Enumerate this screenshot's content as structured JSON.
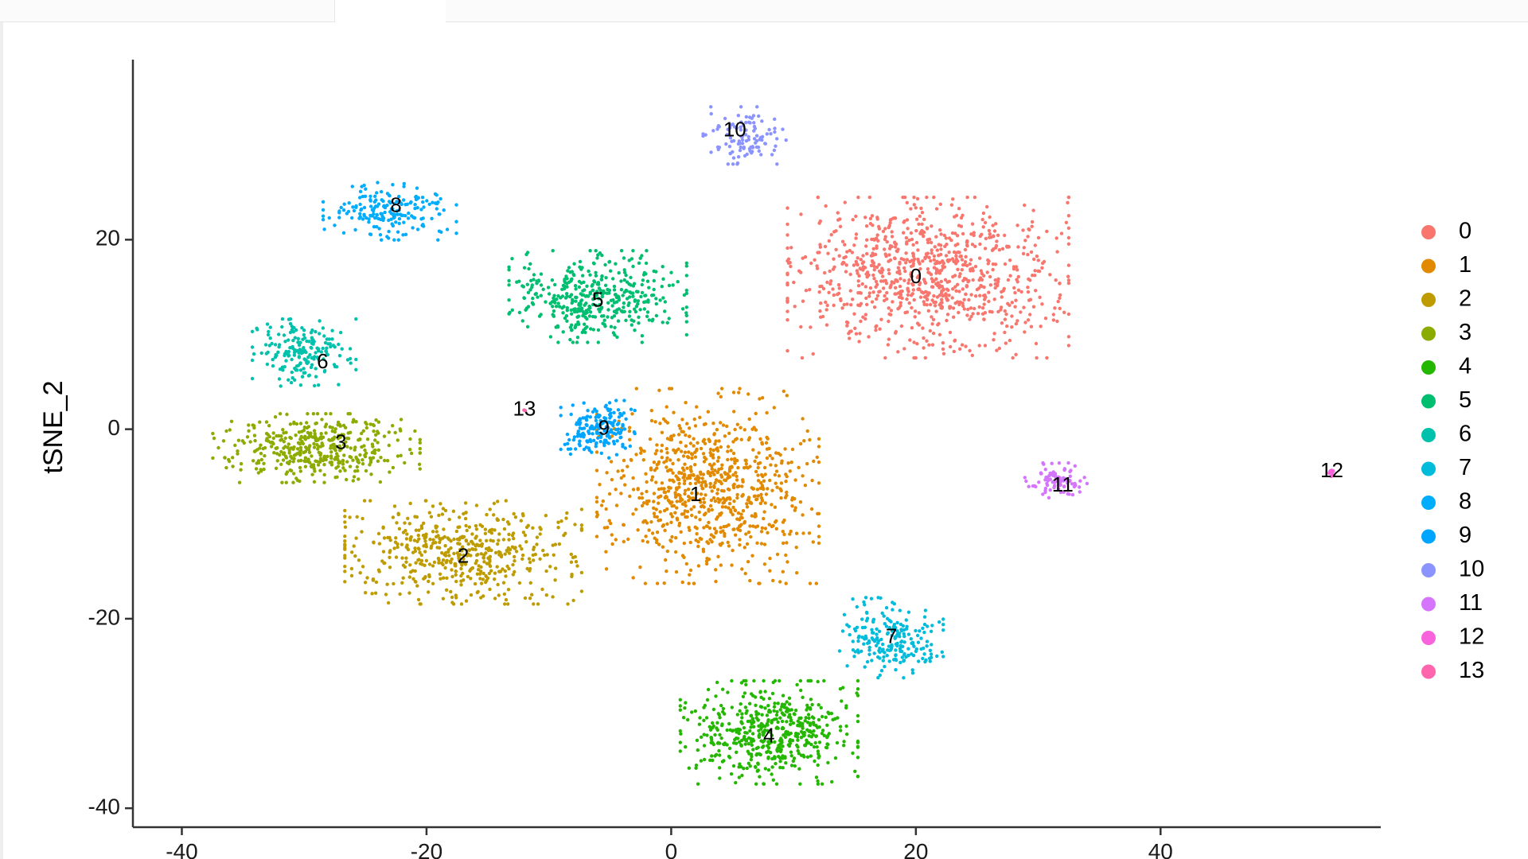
{
  "chart_data": {
    "type": "scatter",
    "title": "",
    "xlabel": "",
    "ylabel": "tSNE_2",
    "xlim": [
      -44,
      58
    ],
    "ylim": [
      -42,
      39
    ],
    "x_ticks": [
      -40,
      -20,
      0,
      20,
      40
    ],
    "y_ticks": [
      -40,
      -20,
      0,
      20
    ],
    "grid": false,
    "legend_position": "right",
    "series": [
      {
        "name": "0",
        "color": "#F8766D",
        "label_pos": [
          20,
          16
        ],
        "center": [
          21,
          16
        ],
        "spread": [
          9.5,
          7
        ],
        "count": 900
      },
      {
        "name": "1",
        "color": "#E18A00",
        "label_pos": [
          2,
          -7
        ],
        "center": [
          3,
          -6
        ],
        "spread": [
          7.5,
          8.5
        ],
        "count": 800
      },
      {
        "name": "2",
        "color": "#BE9C00",
        "label_pos": [
          -17,
          -13.5
        ],
        "center": [
          -17,
          -13
        ],
        "spread": [
          8,
          4.5
        ],
        "count": 520
      },
      {
        "name": "3",
        "color": "#8CAB00",
        "label_pos": [
          -27,
          -1.5
        ],
        "center": [
          -29,
          -2
        ],
        "spread": [
          7,
          3
        ],
        "count": 420
      },
      {
        "name": "4",
        "color": "#24B700",
        "label_pos": [
          8,
          -32.5
        ],
        "center": [
          8,
          -32
        ],
        "spread": [
          6,
          4.5
        ],
        "count": 520
      },
      {
        "name": "5",
        "color": "#00BE70",
        "label_pos": [
          -6,
          13.5
        ],
        "center": [
          -6,
          14
        ],
        "spread": [
          6,
          4
        ],
        "count": 420
      },
      {
        "name": "6",
        "color": "#00C1AB",
        "label_pos": [
          -28.5,
          7
        ],
        "center": [
          -30,
          8
        ],
        "spread": [
          3.5,
          3
        ],
        "count": 190
      },
      {
        "name": "7",
        "color": "#00BBDA",
        "label_pos": [
          18,
          -22
        ],
        "center": [
          18,
          -22
        ],
        "spread": [
          3.5,
          3.5
        ],
        "count": 210
      },
      {
        "name": "8",
        "color": "#00ACFC",
        "label_pos": [
          -22.5,
          23.5
        ],
        "center": [
          -23,
          23
        ],
        "spread": [
          4.5,
          2.5
        ],
        "count": 190
      },
      {
        "name": "9",
        "color": "#00A5FF",
        "label_pos": [
          -5.5,
          0
        ],
        "center": [
          -6,
          0
        ],
        "spread": [
          2.5,
          2.5
        ],
        "count": 180
      },
      {
        "name": "10",
        "color": "#8B93FF",
        "label_pos": [
          5.2,
          31.5
        ],
        "center": [
          6,
          31
        ],
        "spread": [
          2.8,
          2.5
        ],
        "count": 110
      },
      {
        "name": "11",
        "color": "#D575FE",
        "label_pos": [
          32,
          -6
        ],
        "center": [
          31.5,
          -5.5
        ],
        "spread": [
          2.2,
          1.6
        ],
        "count": 90
      },
      {
        "name": "12",
        "color": "#F962DD",
        "label_pos": [
          54,
          -4.5
        ],
        "center": [
          54,
          -4.5
        ],
        "spread": [
          0.3,
          0.4
        ],
        "count": 12
      },
      {
        "name": "13",
        "color": "#FF65AC",
        "label_pos": [
          -12,
          2
        ],
        "center": [
          -12,
          2
        ],
        "spread": [
          0.2,
          0.2
        ],
        "count": 3
      }
    ]
  }
}
